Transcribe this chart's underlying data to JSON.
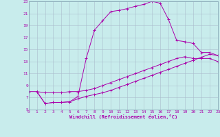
{
  "xlabel": "Windchill (Refroidissement éolien,°C)",
  "xlim": [
    0,
    23
  ],
  "ylim": [
    5,
    23
  ],
  "xticks": [
    0,
    1,
    2,
    3,
    4,
    5,
    6,
    7,
    8,
    9,
    10,
    11,
    12,
    13,
    14,
    15,
    16,
    17,
    18,
    19,
    20,
    21,
    22,
    23
  ],
  "yticks": [
    5,
    7,
    9,
    11,
    13,
    15,
    17,
    19,
    21,
    23
  ],
  "bg_color": "#c8ecec",
  "grid_color": "#aabccc",
  "line_color": "#aa00aa",
  "line1_x": [
    0,
    1,
    2,
    3,
    4,
    5,
    6,
    7,
    8,
    9,
    10,
    11,
    12,
    13,
    14,
    15,
    16,
    17,
    18,
    19,
    20,
    21,
    22,
    23
  ],
  "line1_y": [
    8.0,
    8.0,
    7.8,
    7.8,
    7.8,
    8.0,
    8.0,
    8.2,
    8.5,
    9.0,
    9.5,
    10.0,
    10.5,
    11.0,
    11.5,
    12.0,
    12.5,
    13.0,
    13.5,
    13.8,
    13.5,
    13.5,
    13.5,
    13.0
  ],
  "line2_x": [
    1,
    2,
    3,
    4,
    5,
    6,
    7,
    8,
    9,
    10,
    11,
    12,
    13,
    14,
    15,
    16,
    17,
    18,
    19,
    20,
    21,
    22,
    23
  ],
  "line2_y": [
    8.0,
    6.0,
    6.2,
    6.2,
    6.3,
    6.8,
    7.2,
    7.5,
    7.8,
    8.2,
    8.7,
    9.2,
    9.7,
    10.2,
    10.7,
    11.2,
    11.7,
    12.2,
    12.7,
    13.2,
    13.7,
    14.2,
    14.0
  ],
  "line3_x": [
    1,
    2,
    3,
    4,
    5,
    6,
    7,
    8,
    9,
    10,
    11,
    12,
    13,
    14,
    15,
    16,
    17,
    18,
    19,
    20,
    21,
    22,
    23
  ],
  "line3_y": [
    8.0,
    6.0,
    6.2,
    6.2,
    6.3,
    7.2,
    13.5,
    18.2,
    19.8,
    21.3,
    21.5,
    21.8,
    22.2,
    22.5,
    23.0,
    22.7,
    20.0,
    16.5,
    16.3,
    16.0,
    14.5,
    14.5,
    14.0
  ]
}
